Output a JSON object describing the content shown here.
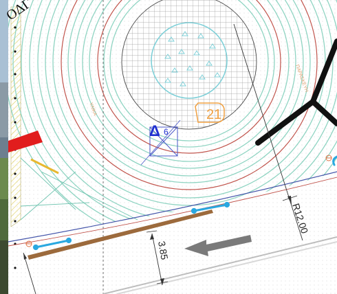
{
  "drawing": {
    "corner_text": "OΔΓ",
    "dimension_radius": "R12.00",
    "dimension_offset": "3.85",
    "marker_number": "21",
    "delta_label": "Δ",
    "delta_subscript": "6",
    "faint_label_left": "ΥΛΙΚΑ",
    "faint_label_right": "ΠΑΡΑΣΚΕΥΗ"
  },
  "colors": {
    "paper": "#ffffff",
    "ring_teal": "#8fd4c2",
    "ring_red": "#c0524a",
    "grid": "#9a9a9a",
    "tree_canopy": "#7fd0d8",
    "arrow_gray": "#7a7a7a",
    "accent_blue": "#1e2fd0",
    "hose_blue": "#29a8e0",
    "marker_orange": "#f0a040",
    "arrow_red": "#e11d1d",
    "hatch_yellow": "#e2d36a",
    "structure_black": "#111111",
    "dim_line": "#333333"
  },
  "icons": [
    "delta-marker-icon",
    "tripod-structure-icon",
    "direction-arrow-icon",
    "red-pointer-icon",
    "hose-icon"
  ]
}
